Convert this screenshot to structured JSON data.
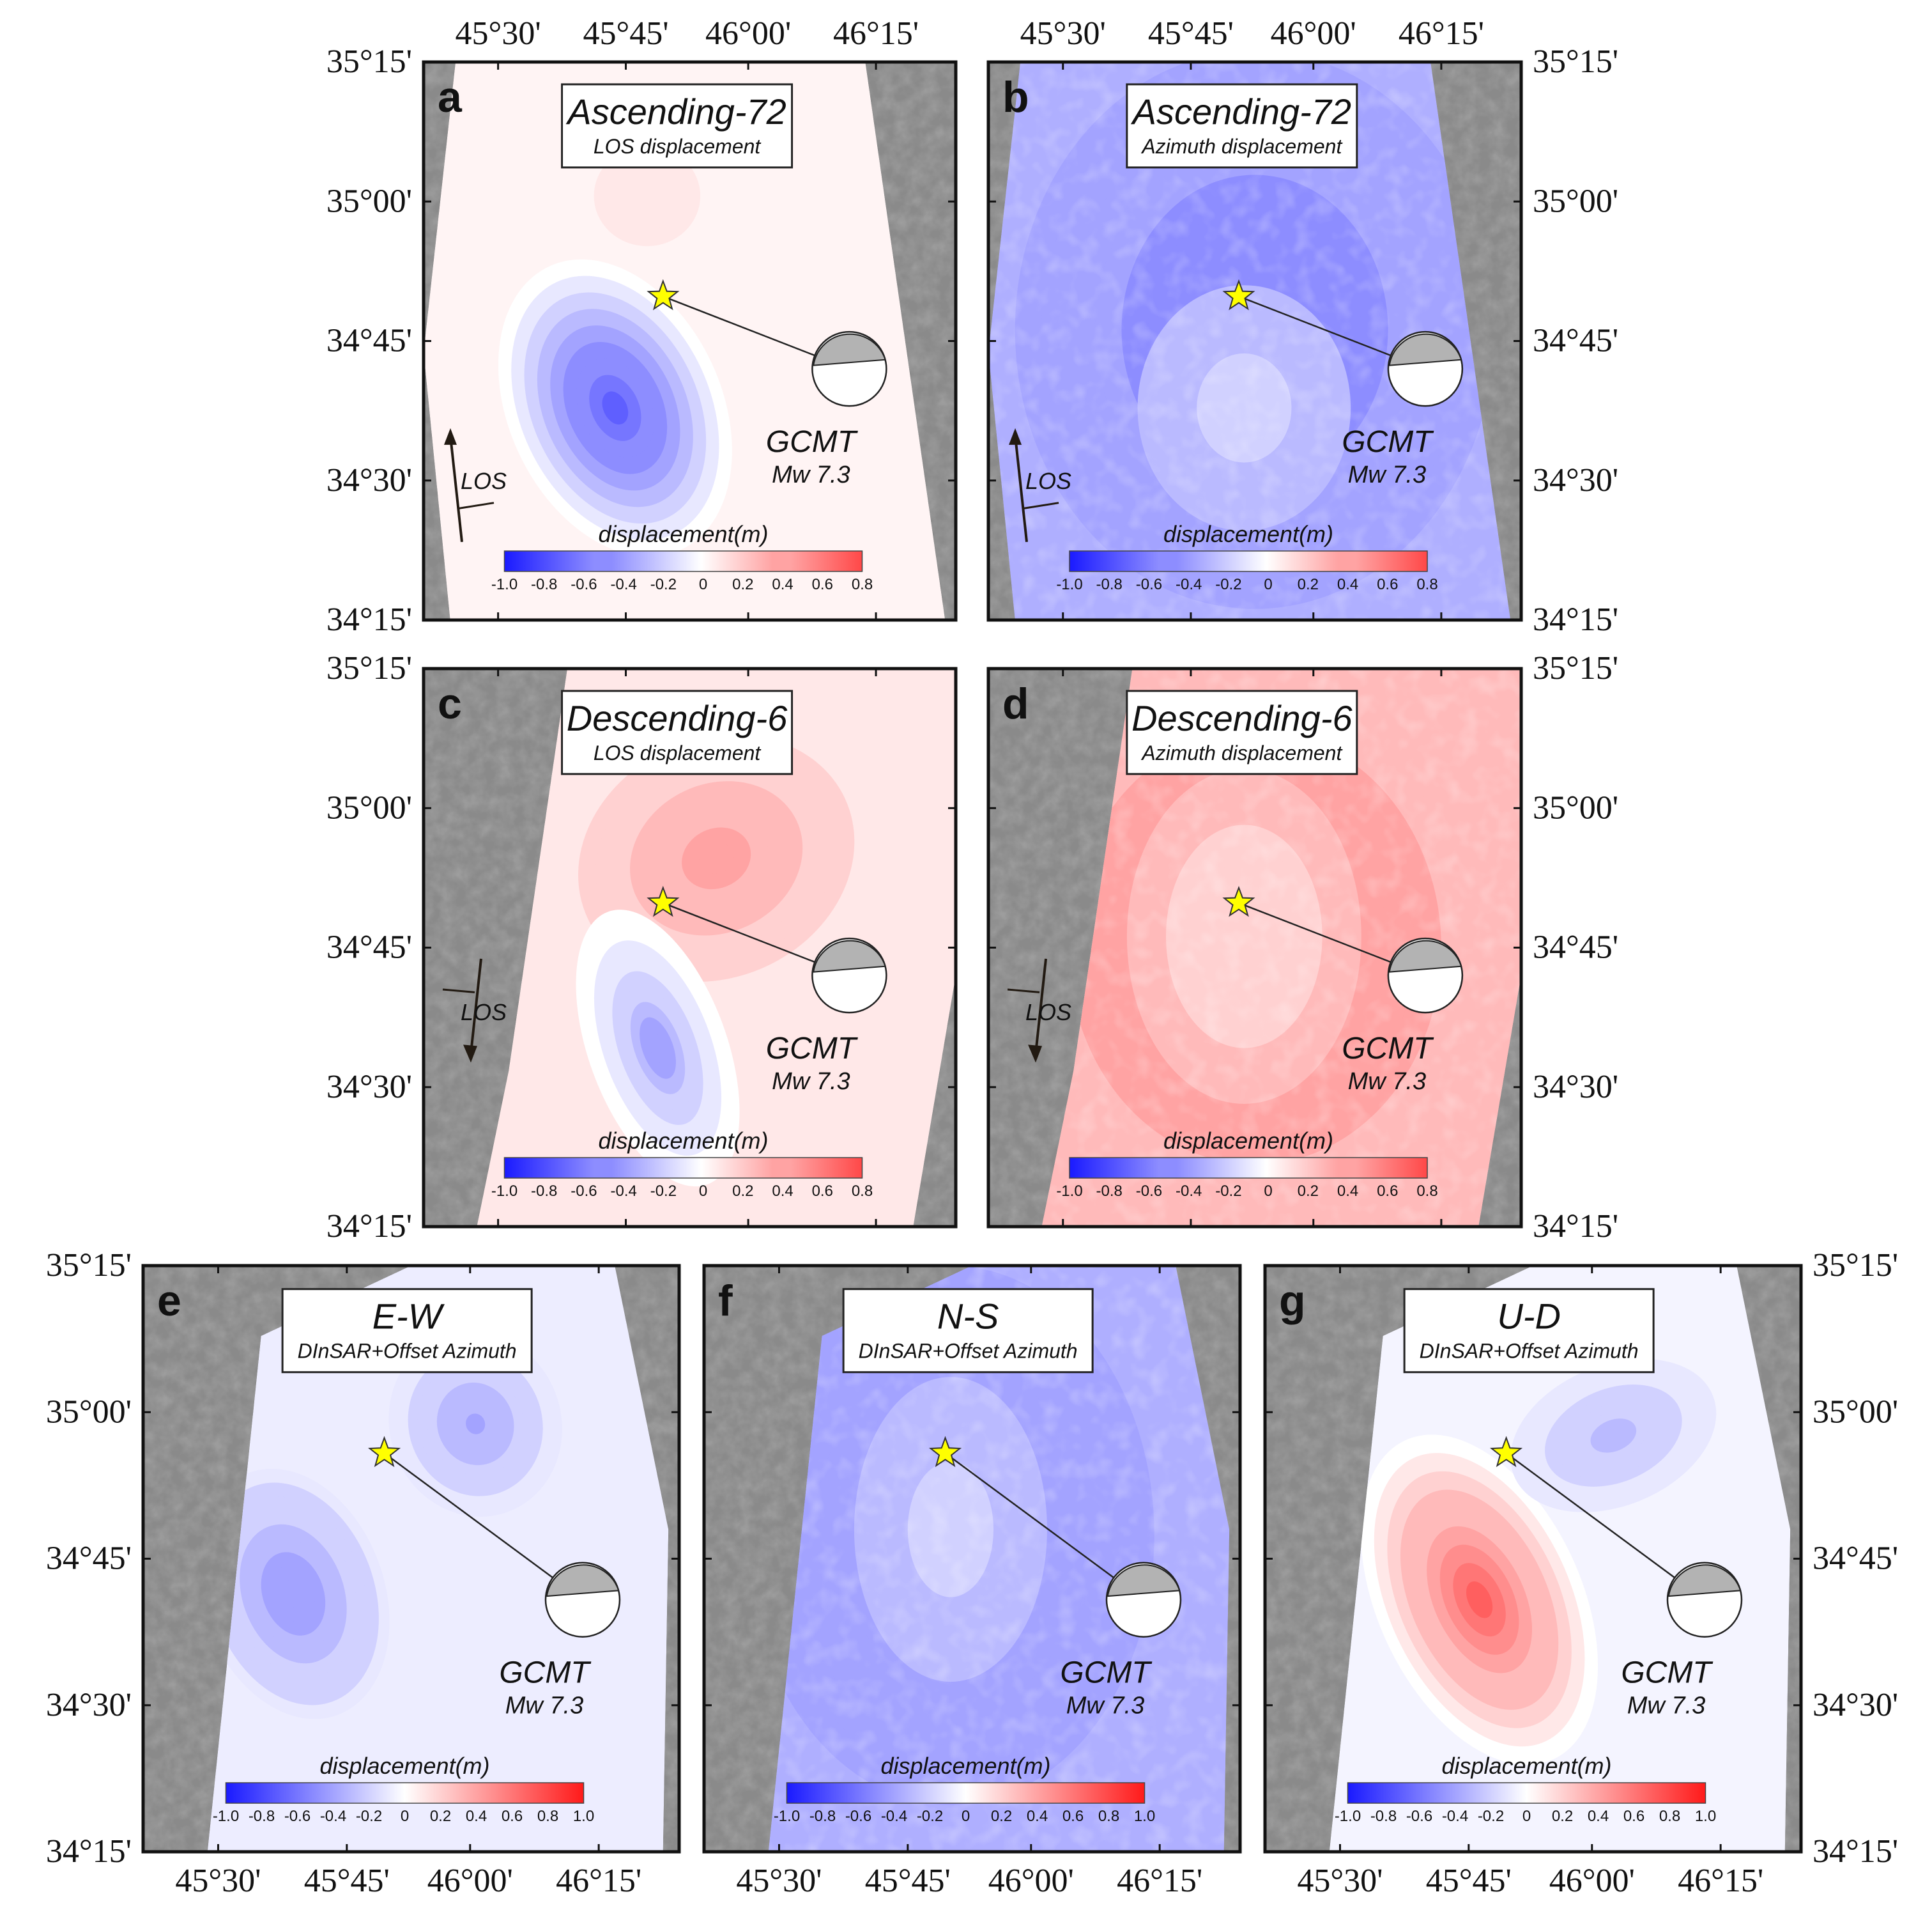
{
  "figure": {
    "lon_labels": [
      "45°30'",
      "45°45'",
      "46°00'",
      "46°15'"
    ],
    "lat_labels": [
      "35°15'",
      "35°00'",
      "34°45'",
      "34°30'",
      "34°15'"
    ],
    "colorbar_label": "displacement(m)",
    "colorbar_ticks_short": [
      "-1.0",
      "-0.8",
      "-0.6",
      "-0.4",
      "-0.2",
      "0",
      "0.2",
      "0.4",
      "0.6",
      "0.8"
    ],
    "colorbar_ticks_long": [
      "-1.0",
      "-0.8",
      "-0.6",
      "-0.4",
      "-0.2",
      "0",
      "0.2",
      "0.4",
      "0.6",
      "0.8",
      "1.0"
    ],
    "colorbar_range_short": [
      -1.0,
      0.8
    ],
    "colorbar_range_long": [
      -1.0,
      1.0
    ],
    "colors": {
      "negative": "#1a1aff",
      "neutral": "#ffffff",
      "positive": "#ff1a1a",
      "star": "#ffff00",
      "terrain": "#8a8a8a"
    },
    "focal_mechanism": {
      "name": "GCMT",
      "magnitude": "Mw 7.3"
    },
    "los_label": "LOS",
    "epicenter_icon": "star-icon"
  },
  "panels": [
    {
      "id": "a",
      "letter": "a",
      "title": "Ascending-72",
      "subtitle": "LOS displacement",
      "pattern": "asc-los",
      "track": "ascending"
    },
    {
      "id": "b",
      "letter": "b",
      "title": "Ascending-72",
      "subtitle": "Azimuth displacement",
      "pattern": "asc-azi",
      "track": "ascending"
    },
    {
      "id": "c",
      "letter": "c",
      "title": "Descending-6",
      "subtitle": "LOS displacement",
      "pattern": "desc-los",
      "track": "descending"
    },
    {
      "id": "d",
      "letter": "d",
      "title": "Descending-6",
      "subtitle": "Azimuth displacement",
      "pattern": "desc-azi",
      "track": "descending"
    },
    {
      "id": "e",
      "letter": "e",
      "title": "E-W",
      "subtitle": "DInSAR+Offset Azimuth",
      "pattern": "ew",
      "track": "combined"
    },
    {
      "id": "f",
      "letter": "f",
      "title": "N-S",
      "subtitle": "DInSAR+Offset Azimuth",
      "pattern": "ns",
      "track": "combined"
    },
    {
      "id": "g",
      "letter": "g",
      "title": "U-D",
      "subtitle": "DInSAR+Offset Azimuth",
      "pattern": "ud",
      "track": "combined"
    }
  ]
}
